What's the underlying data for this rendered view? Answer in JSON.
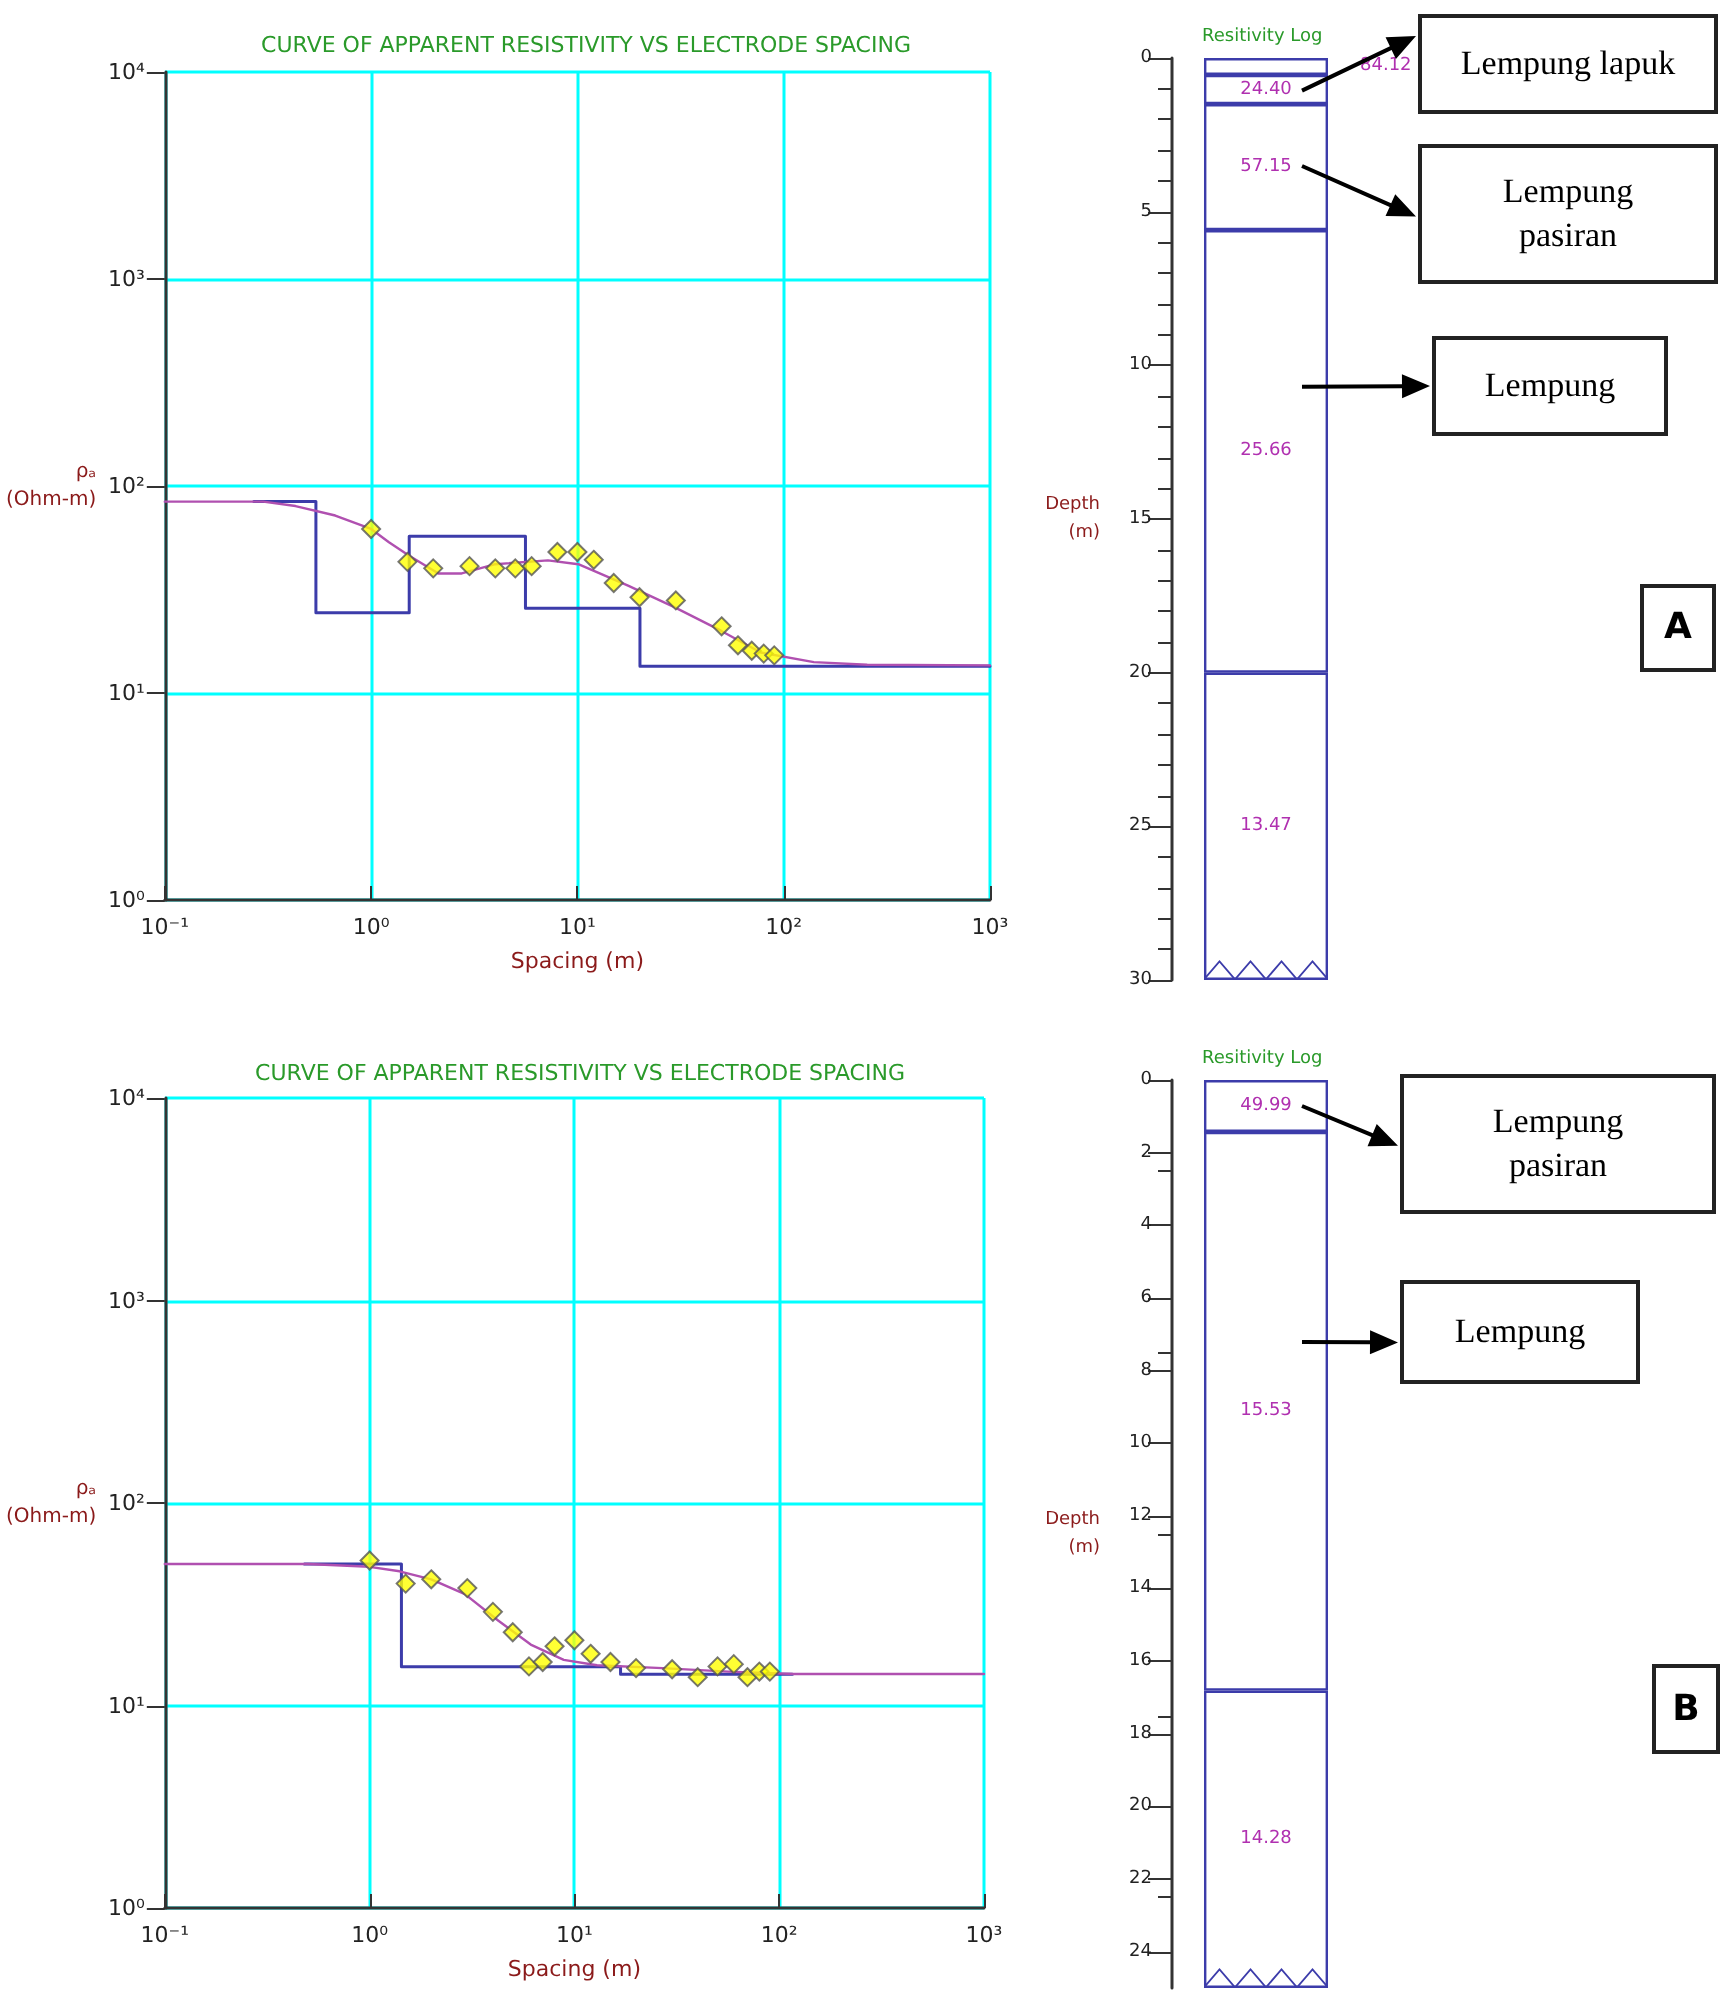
{
  "chart_data": [
    {
      "type": "scatter",
      "title": "CURVE OF APPARENT RESISTIVITY VS ELECTRODE SPACING",
      "xlabel": "Spacing (m)",
      "ylabel": "ρₐ\n(Ohm-m)",
      "log": "xy",
      "grid": true,
      "xlim": [
        0.1,
        1000
      ],
      "ylim": [
        1,
        10000
      ],
      "xticks": [
        {
          "value": 0.1,
          "label": "10⁻¹"
        },
        {
          "value": 1,
          "label": "10⁰"
        },
        {
          "value": 10,
          "label": "10¹"
        },
        {
          "value": 100,
          "label": "10²"
        },
        {
          "value": 1000,
          "label": "10³"
        }
      ],
      "yticks": [
        {
          "value": 1,
          "label": "10⁰"
        },
        {
          "value": 10,
          "label": "10¹"
        },
        {
          "value": 100,
          "label": "10²"
        },
        {
          "value": 1000,
          "label": "10³"
        },
        {
          "value": 10000,
          "label": "10⁴"
        }
      ],
      "series": [
        {
          "type": "step",
          "color": "#3c3caa",
          "x": [
            0.27,
            0.54,
            1.53,
            5.6,
            20.1,
            1000
          ],
          "values": [
            84.12,
            24.4,
            57.15,
            25.66,
            13.47,
            13.47
          ]
        },
        {
          "type": "line",
          "color": "#b050b0",
          "marker": "none",
          "x": [
            0.1,
            0.3,
            0.43,
            0.67,
            1.0,
            1.22,
            1.53,
            2.12,
            2.75,
            4,
            7.2,
            10.1,
            17.6,
            29.5,
            49.6,
            77.4,
            140,
            254,
            1000
          ],
          "values": [
            84,
            84,
            80,
            72,
            62,
            53.5,
            46,
            37.8,
            37.8,
            41.9,
            43.7,
            41.9,
            33,
            26,
            20,
            15.7,
            14.1,
            13.7,
            13.6
          ]
        },
        {
          "color": "#ffff00",
          "marker": "diamond",
          "x": [
            1,
            1.5,
            2,
            3,
            4,
            5,
            6,
            8,
            10,
            12,
            15,
            20,
            30,
            50,
            60,
            70,
            80,
            90
          ],
          "values": [
            62,
            43,
            40,
            41,
            40,
            40,
            41,
            48,
            48,
            44,
            34,
            29,
            28,
            21,
            17,
            16,
            15.5,
            15.2
          ]
        }
      ]
    },
    {
      "type": "bar",
      "stacked": true,
      "title": "Resitivity Log",
      "ylabel": "Depth\n(m)",
      "categories": [
        null
      ],
      "ylim": [
        30,
        0
      ],
      "yticks": [
        0,
        5,
        10,
        15,
        20,
        25,
        30
      ],
      "series": [
        {
          "name": "84.12",
          "color": "#3c3caa",
          "values": [
            0.55
          ]
        },
        {
          "name": "24.40",
          "color": "#3c3caa",
          "values": [
            0.95
          ]
        },
        {
          "name": "57.15",
          "color": "#3c3caa",
          "values": [
            4.1
          ]
        },
        {
          "name": "25.66",
          "color": "#3c3caa",
          "values": [
            14.4
          ]
        },
        {
          "name": "13.47",
          "color": "#3c3caa",
          "values": [
            10.0
          ]
        }
      ],
      "annotations": [
        "Lempung lapuk",
        "Lempung\npasiran",
        "Lempung",
        "A"
      ]
    },
    {
      "type": "scatter",
      "title": "CURVE OF APPARENT RESISTIVITY VS ELECTRODE SPACING",
      "xlabel": "Spacing (m)",
      "ylabel": "ρₐ\n(Ohm-m)",
      "log": "xy",
      "grid": true,
      "xlim": [
        0.1,
        1000
      ],
      "ylim": [
        1,
        10000
      ],
      "xticks": [
        {
          "value": 0.1,
          "label": "10⁻¹"
        },
        {
          "value": 1,
          "label": "10⁰"
        },
        {
          "value": 10,
          "label": "10¹"
        },
        {
          "value": 100,
          "label": "10²"
        },
        {
          "value": 1000,
          "label": "10³"
        }
      ],
      "yticks": [
        {
          "value": 1,
          "label": "10⁰"
        },
        {
          "value": 10,
          "label": "10¹"
        },
        {
          "value": 100,
          "label": "10²"
        },
        {
          "value": 1000,
          "label": "10³"
        },
        {
          "value": 10000,
          "label": "10⁴"
        }
      ],
      "series": [
        {
          "type": "step",
          "color": "#3c3caa",
          "x": [
            0.48,
            1.43,
            16.8,
            116
          ],
          "values": [
            49.99,
            15.53,
            14.28,
            14.28
          ]
        },
        {
          "type": "line",
          "color": "#b050b0",
          "marker": "none",
          "x": [
            0.1,
            0.5,
            1,
            1.4,
            2,
            2.92,
            4.24,
            6.12,
            8.87,
            12.9,
            26.9,
            56.4,
            118,
            1000
          ],
          "values": [
            50,
            50,
            48.4,
            46,
            42,
            35.5,
            26.3,
            20,
            16.8,
            15.8,
            15.3,
            14.7,
            14.3,
            14.3
          ]
        },
        {
          "color": "#ffff00",
          "marker": "diamond",
          "x": [
            1,
            1.5,
            2,
            3,
            4,
            5,
            6,
            7,
            8,
            10,
            12,
            15,
            20,
            30,
            40,
            50,
            60,
            70,
            80,
            90
          ],
          "values": [
            52,
            40,
            42,
            38,
            29,
            23,
            15.6,
            16.4,
            19.6,
            21,
            18,
            16.4,
            15.3,
            15.1,
            13.8,
            15.6,
            16,
            13.8,
            14.7,
            14.7
          ]
        }
      ]
    },
    {
      "type": "bar",
      "stacked": true,
      "title": "Resitivity Log",
      "ylabel": "Depth\n(m)",
      "categories": [
        null
      ],
      "ylim": [
        25,
        0
      ],
      "yticks": [
        0,
        2,
        4,
        6,
        8,
        10,
        12,
        14,
        16,
        18,
        20,
        22,
        24
      ],
      "series": [
        {
          "name": "49.99",
          "color": "#3c3caa",
          "values": [
            1.43
          ]
        },
        {
          "name": "15.53",
          "color": "#3c3caa",
          "values": [
            15.38
          ]
        },
        {
          "name": "14.28",
          "color": "#3c3caa",
          "values": [
            8.19
          ]
        }
      ],
      "annotations": [
        "Lempung\npasiran",
        "Lempung",
        "B"
      ]
    }
  ]
}
